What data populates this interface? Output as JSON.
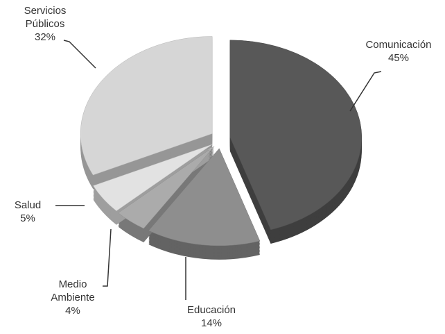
{
  "chart_data": {
    "type": "pie",
    "categories": [
      "Comunicación",
      "Educación",
      "Medio Ambiente",
      "Salud",
      "Servicios Públicos"
    ],
    "values": [
      45,
      14,
      4,
      5,
      32
    ],
    "value_labels": [
      "45%",
      "14%",
      "4%",
      "5%",
      "32%"
    ],
    "colors": [
      "#585858",
      "#8e8e8e",
      "#ababab",
      "#e2e2e2",
      "#d6d6d6"
    ]
  }
}
